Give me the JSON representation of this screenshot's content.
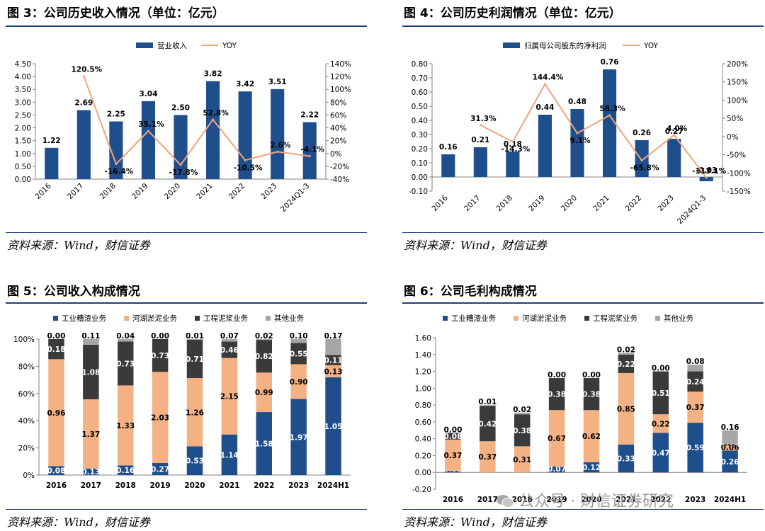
{
  "colors": {
    "navy": "#1f4e8c",
    "salmon": "#f4b183",
    "dark": "#3a3a3a",
    "gray": "#a6a6a6",
    "line": "#f0a57a",
    "rule": "#1f3f78"
  },
  "source_text": "资料来源：Wind，财信证券",
  "watermark": "公众号 · 财信证券研究",
  "watermark_icon": "wechat-icon",
  "chart_data": [
    {
      "id": "fig3",
      "type": "bar",
      "title": "图 3：公司历史收入情况（单位：亿元）",
      "categories": [
        "2016",
        "2017",
        "2018",
        "2019",
        "2020",
        "2021",
        "2022",
        "2023",
        "2024Q1-3"
      ],
      "series": [
        {
          "name": "营业收入",
          "kind": "bar",
          "values": [
            1.22,
            2.69,
            2.25,
            3.04,
            2.5,
            3.82,
            3.42,
            3.51,
            2.22
          ],
          "labels": [
            "1.22",
            "2.69",
            "2.25",
            "3.04",
            "2.50",
            "3.82",
            "3.42",
            "3.51",
            "2.22"
          ]
        },
        {
          "name": "YOY",
          "kind": "line",
          "axis": "right",
          "values": [
            null,
            120.5,
            -16.4,
            35.1,
            -17.8,
            52.8,
            -10.5,
            2.6,
            -4.1
          ],
          "labels": [
            "",
            "120.5%",
            "-16.4%",
            "35.1%",
            "-17.8%",
            "52.8%",
            "-10.5%",
            "2.6%",
            "-4.1%"
          ]
        }
      ],
      "y_left": {
        "min": 0,
        "max": 4.5,
        "step": 0.5,
        "ticks": [
          "0.00",
          "0.50",
          "1.00",
          "1.50",
          "2.00",
          "2.50",
          "3.00",
          "3.50",
          "4.00",
          "4.50"
        ]
      },
      "y_right": {
        "min": -40,
        "max": 140,
        "step": 20,
        "ticks": [
          "-40%",
          "-20%",
          "0%",
          "20%",
          "40%",
          "60%",
          "80%",
          "100%",
          "120%",
          "140%"
        ]
      },
      "legend": "top"
    },
    {
      "id": "fig4",
      "type": "bar",
      "title": "图 4：公司历史利润情况（单位：亿元）",
      "categories": [
        "2016",
        "2017",
        "2018",
        "2019",
        "2020",
        "2021",
        "2022",
        "2023",
        "2024Q1-3"
      ],
      "series": [
        {
          "name": "归属母公司股东的净利润",
          "kind": "bar",
          "values": [
            0.16,
            0.21,
            0.18,
            0.44,
            0.48,
            0.76,
            0.26,
            0.27,
            -0.03
          ],
          "labels": [
            "0.16",
            "0.21",
            "0.18",
            "0.44",
            "0.48",
            "0.76",
            "0.26",
            "0.27",
            "-0.03"
          ]
        },
        {
          "name": "YOY",
          "kind": "line",
          "axis": "right",
          "values": [
            null,
            31.3,
            -14.3,
            144.4,
            9.1,
            58.3,
            -65.8,
            4.0,
            -113.1
          ],
          "labels": [
            "",
            "31.3%",
            "-14.3%",
            "144.4%",
            "9.1%",
            "58.3%",
            "-65.8%",
            "4.0%",
            "-113.1%"
          ]
        }
      ],
      "y_left": {
        "min": -0.1,
        "max": 0.8,
        "step": 0.1,
        "ticks": [
          "-0.10",
          "0.00",
          "0.10",
          "0.20",
          "0.30",
          "0.40",
          "0.50",
          "0.60",
          "0.70",
          "0.80"
        ]
      },
      "y_right": {
        "min": -150,
        "max": 200,
        "step": 50,
        "ticks": [
          "-150%",
          "-100%",
          "-50%",
          "0%",
          "50%",
          "100%",
          "150%",
          "200%"
        ]
      },
      "legend": "top"
    },
    {
      "id": "fig5",
      "type": "bar",
      "stacked": "percent",
      "title": "图 5：公司收入构成情况",
      "categories": [
        "2016",
        "2017",
        "2018",
        "2019",
        "2020",
        "2021",
        "2022",
        "2023",
        "2024H1"
      ],
      "series": [
        {
          "name": "工业糟渣业务",
          "values": [
            0.08,
            0.13,
            0.16,
            0.27,
            0.53,
            1.14,
            1.58,
            1.97,
            1.05
          ]
        },
        {
          "name": "河湖淤泥业务",
          "values": [
            0.96,
            1.37,
            1.33,
            2.03,
            1.26,
            2.15,
            0.99,
            0.9,
            0.13
          ]
        },
        {
          "name": "工程泥浆业务",
          "values": [
            0.18,
            1.08,
            0.73,
            0.73,
            0.71,
            0.46,
            0.82,
            0.55,
            0.11
          ]
        },
        {
          "name": "其他业务",
          "values": [
            0.0,
            0.11,
            0.04,
            0.0,
            0.01,
            0.07,
            0.02,
            0.1,
            0.17
          ]
        }
      ],
      "labels": [
        [
          "0.08",
          "0.13",
          "0.16",
          "0.27",
          "0.53",
          "1.14",
          "1.58",
          "1.97",
          "1.05"
        ],
        [
          "0.96",
          "1.37",
          "1.33",
          "2.03",
          "1.26",
          "2.15",
          "0.99",
          "0.90",
          "0.13"
        ],
        [
          "0.18",
          "1.08",
          "0.73",
          "0.73",
          "0.71",
          "0.46",
          "0.82",
          "0.55",
          "0.11"
        ],
        [
          "0.00",
          "0.11",
          "0.04",
          "0.00",
          "0.01",
          "0.07",
          "0.02",
          "0.10",
          "0.17"
        ]
      ],
      "y_ticks": [
        "0%",
        "20%",
        "40%",
        "60%",
        "80%",
        "100%"
      ],
      "legend": "top"
    },
    {
      "id": "fig6",
      "type": "bar",
      "stacked": "value",
      "title": "图 6：公司毛利构成情况",
      "categories": [
        "2016",
        "2017",
        "2018",
        "2019",
        "2020",
        "2021",
        "2022",
        "2023",
        "2024H1"
      ],
      "series": [
        {
          "name": "工业糟渣业务",
          "values": [
            0.02,
            0.0,
            0.0,
            0.07,
            0.12,
            0.33,
            0.47,
            0.59,
            0.26
          ]
        },
        {
          "name": "河湖淤泥业务",
          "values": [
            0.37,
            0.37,
            0.31,
            0.67,
            0.62,
            0.85,
            0.22,
            0.37,
            0.06
          ]
        },
        {
          "name": "工程泥浆业务",
          "values": [
            0.08,
            0.42,
            0.38,
            0.38,
            0.38,
            0.22,
            0.51,
            0.24,
            0.02
          ]
        },
        {
          "name": "其他业务",
          "values": [
            0.0,
            0.01,
            0.02,
            0.0,
            0.0,
            0.02,
            0.0,
            0.08,
            0.16
          ]
        }
      ],
      "labels": [
        [
          "0.02",
          "0.00",
          "0.00",
          "0.07",
          "0.12",
          "0.33",
          "0.47",
          "0.59",
          "0.26"
        ],
        [
          "0.37",
          "0.37",
          "0.31",
          "0.67",
          "0.62",
          "0.85",
          "0.22",
          "0.37",
          "0.06"
        ],
        [
          "0.08",
          "0.42",
          "0.38",
          "0.38",
          "0.38",
          "0.22",
          "0.51",
          "0.24",
          "0.02"
        ],
        [
          "0.00",
          "0.01",
          "0.02",
          "0.00",
          "0.00",
          "0.02",
          "0.00",
          "0.08",
          "0.16"
        ]
      ],
      "y_axis": {
        "min": -0.2,
        "max": 1.6,
        "step": 0.2,
        "ticks": [
          "-0.20",
          "0.00",
          "0.20",
          "0.40",
          "0.60",
          "0.80",
          "1.00",
          "1.20",
          "1.40",
          "1.60"
        ]
      },
      "legend": "top"
    }
  ]
}
